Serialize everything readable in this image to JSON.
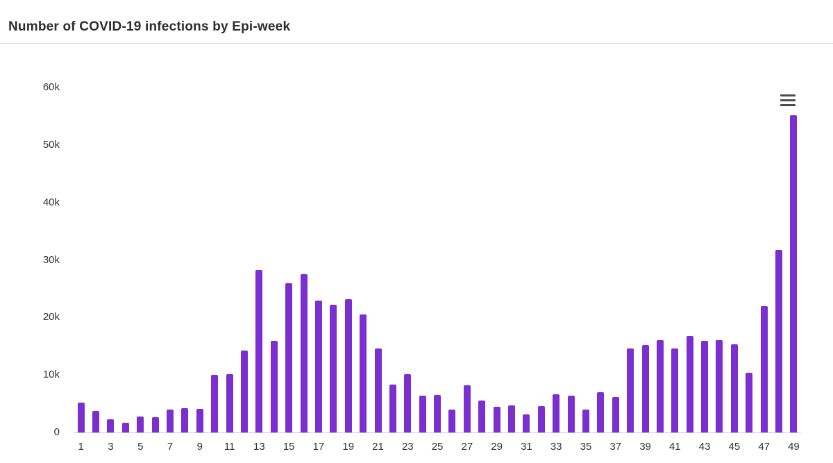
{
  "page": {
    "title": "Number of COVID-19 infections by Epi-week"
  },
  "toolbar": {
    "context_menu_icon": "hamburger-icon"
  },
  "colors": {
    "bar": "#7b2fd0",
    "axis_text": "#333333",
    "title_text": "#2d2d2d",
    "divider": "#e2e2e2"
  },
  "chart_data": {
    "type": "bar",
    "title": "Number of COVID-19 infections by Epi-week",
    "xlabel": "",
    "ylabel": "",
    "ylim": [
      0,
      60000
    ],
    "grid": false,
    "legend": false,
    "ytick_labels": [
      "0",
      "10k",
      "20k",
      "30k",
      "40k",
      "50k",
      "60k"
    ],
    "xtick_step_note": "only odd weeks labeled",
    "categories": [
      1,
      2,
      3,
      4,
      5,
      6,
      7,
      8,
      9,
      10,
      11,
      12,
      13,
      14,
      15,
      16,
      17,
      18,
      19,
      20,
      21,
      22,
      23,
      24,
      25,
      26,
      27,
      28,
      29,
      30,
      31,
      32,
      33,
      34,
      35,
      36,
      37,
      38,
      39,
      40,
      41,
      42,
      43,
      44,
      45,
      46,
      47,
      48,
      49
    ],
    "values": [
      5200,
      3800,
      2300,
      1700,
      2800,
      2600,
      4000,
      4200,
      4100,
      10000,
      10200,
      14200,
      28200,
      15900,
      26000,
      27500,
      22900,
      22200,
      23200,
      20500,
      14600,
      8300,
      10100,
      6400,
      6500,
      4000,
      8200,
      5500,
      4500,
      4700,
      3200,
      4600,
      6700,
      6400,
      4000,
      7000,
      6200,
      14600,
      15200,
      16000,
      14600,
      16800,
      15900,
      16100,
      15300,
      10400,
      22000,
      31800,
      55200
    ]
  }
}
